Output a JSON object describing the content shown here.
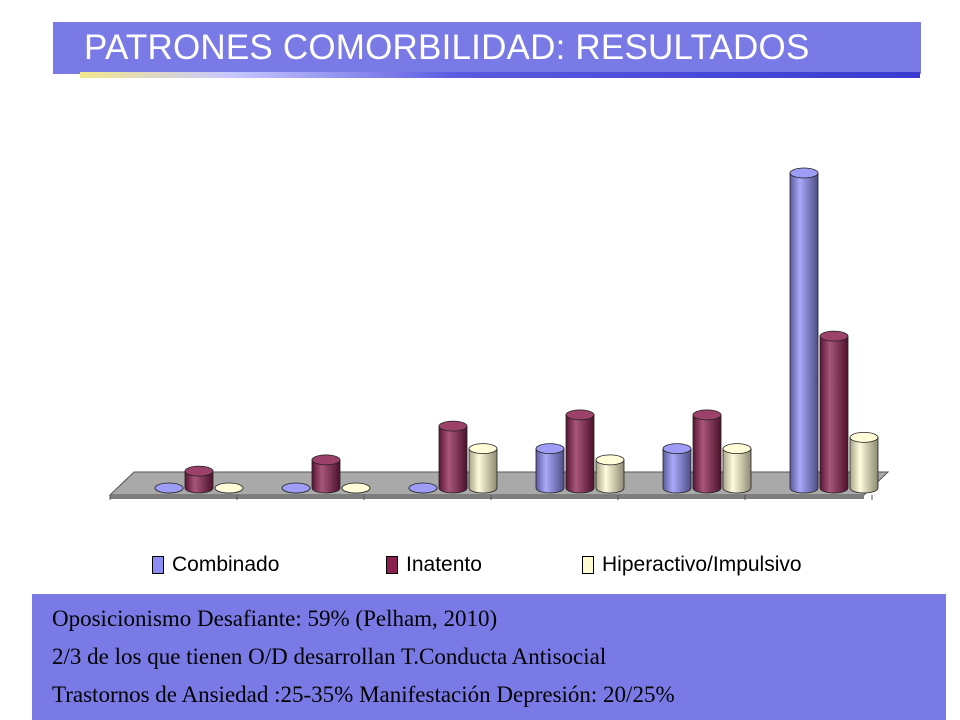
{
  "slide": {
    "title": "PATRONES COMORBILIDAD: RESULTADOS"
  },
  "colors": {
    "title_band": "#7a7ae6",
    "text_box": "#7a7ae6"
  },
  "chart_data": {
    "type": "bar",
    "style": "3d-clustered-cylinder",
    "categories": [
      "",
      "",
      "",
      "",
      "",
      ""
    ],
    "series": [
      {
        "name": "Combinado",
        "color": "#8c8cf5",
        "values": [
          0,
          0,
          0,
          7,
          7,
          56
        ]
      },
      {
        "name": "Inatento",
        "color": "#8b1f4e",
        "values": [
          3,
          5,
          11,
          13,
          13,
          27
        ]
      },
      {
        "name": "Hiperactivo/Impulsivo",
        "color": "#fffbd0",
        "values": [
          0,
          0,
          7,
          5,
          7,
          9
        ]
      }
    ],
    "ylim": [
      0,
      60
    ],
    "y_ticks": [
      "",
      "",
      "",
      "",
      "",
      "",
      ""
    ],
    "grid": false,
    "legend_position": "bottom"
  },
  "notes": {
    "line1": "Oposicionismo Desafiante: 59% (Pelham, 2010)",
    "line2": "2/3 de los que tienen O/D desarrollan T.Conducta Antisocial",
    "line3": "Trastornos de Ansiedad :25-35% Manifestación Depresión: 20/25%"
  }
}
